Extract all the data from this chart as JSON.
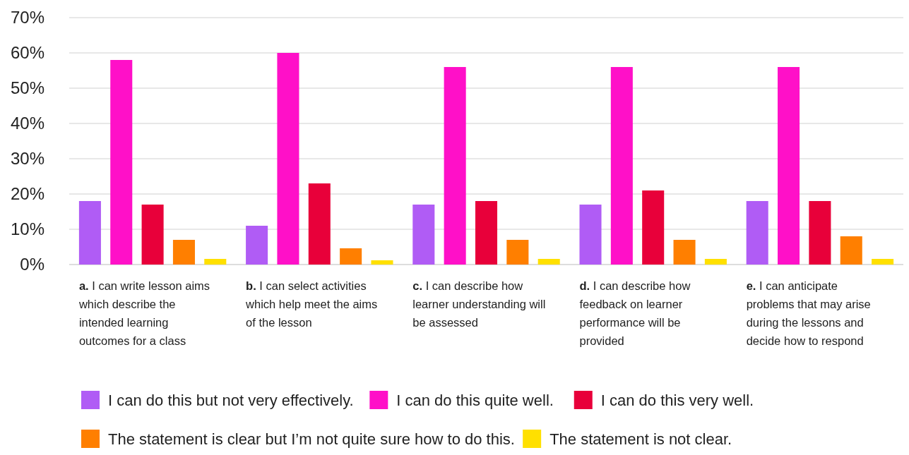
{
  "chart_data": {
    "type": "bar",
    "categories": [
      "a. I can write lesson aims which describe the intended learning outcomes for a class",
      "b. I can select activities which help meet the aims of the lesson",
      "c. I can describe how learner understanding will be assessed",
      "d. I can describe how feedback on learner performance will be provided",
      "e. I can anticipate problems that may arise during the lessons and decide how to respond"
    ],
    "series": [
      {
        "name": "I can do this but not very effectively.",
        "color": "#b05cf5",
        "values": [
          18,
          11,
          17,
          17,
          18
        ]
      },
      {
        "name": "I can do this quite well.",
        "color": "#ff10c8",
        "values": [
          58,
          60,
          56,
          56,
          56
        ]
      },
      {
        "name": "I can do this very well.",
        "color": "#e8003a",
        "values": [
          17,
          23,
          18,
          21,
          18
        ]
      },
      {
        "name": "The statement is clear but I’m not quite sure how to do this.",
        "color": "#ff7f00",
        "values": [
          7,
          4.6,
          7,
          7,
          8
        ]
      },
      {
        "name": "The statement is not clear.",
        "color": "#ffe000",
        "values": [
          1.6,
          1.2,
          1.6,
          1.6,
          1.6
        ]
      }
    ],
    "ylim": [
      0,
      70
    ],
    "yticks": [
      {
        "value": 0,
        "label": "0%"
      },
      {
        "value": 10,
        "label": "10%"
      },
      {
        "value": 20,
        "label": "20%"
      },
      {
        "value": 30,
        "label": "30%"
      },
      {
        "value": 40,
        "label": "40%"
      },
      {
        "value": 50,
        "label": "50%"
      },
      {
        "value": 60,
        "label": "60%"
      },
      {
        "value": 70,
        "label": "70%"
      }
    ],
    "grid": "y",
    "legend": "bottom"
  }
}
